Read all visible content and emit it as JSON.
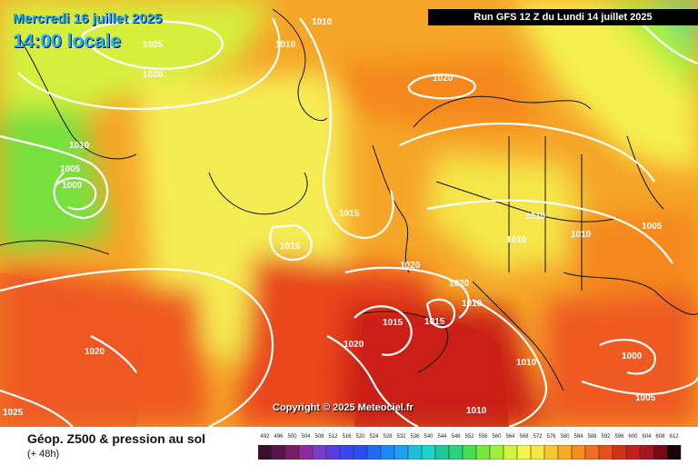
{
  "header": {
    "date_text": "Mercredi 16 juillet 2025",
    "time_text": "14:00 locale",
    "run_text": "Run GFS 12 Z du Lundi 14 juillet 2025"
  },
  "map": {
    "copyright_text": "Copyright © 2025 Meteociel.fr",
    "isobars": [
      {
        "label": "1010"
      },
      {
        "label": "1010"
      },
      {
        "label": "1025"
      },
      {
        "label": "1020"
      },
      {
        "label": "1020"
      },
      {
        "label": "1010"
      },
      {
        "label": "1005"
      },
      {
        "label": "1000"
      },
      {
        "label": "1015"
      },
      {
        "label": "1010"
      },
      {
        "label": "1010"
      },
      {
        "label": "1010"
      },
      {
        "label": "1010"
      },
      {
        "label": "1005"
      },
      {
        "label": "1020"
      },
      {
        "label": "1020"
      },
      {
        "label": "1010"
      },
      {
        "label": "1015"
      },
      {
        "label": "1015"
      },
      {
        "label": "1020"
      },
      {
        "label": "1020"
      },
      {
        "label": "1010"
      },
      {
        "label": "1000"
      },
      {
        "label": "1005"
      },
      {
        "label": "1025"
      },
      {
        "label": "1010"
      }
    ],
    "colors": {
      "land_border": "#111111",
      "isobar": "#ffffff"
    }
  },
  "legend": {
    "title": "Géop. Z500 & pression au sol",
    "subtitle": "(+ 48h)",
    "scale_values": [
      "492",
      "496",
      "500",
      "504",
      "508",
      "512",
      "516",
      "520",
      "524",
      "528",
      "532",
      "536",
      "540",
      "544",
      "548",
      "552",
      "556",
      "560",
      "564",
      "568",
      "572",
      "576",
      "580",
      "584",
      "588",
      "592",
      "596",
      "600",
      "604",
      "608",
      "612"
    ],
    "scale_colors": [
      "#3a0f2e",
      "#5a1548",
      "#7a1c66",
      "#8c2aa0",
      "#7a3cc8",
      "#5a3ce0",
      "#3c46f0",
      "#2850f0",
      "#1e6af0",
      "#1e86f5",
      "#1ea0f5",
      "#1ebedc",
      "#1ed2c8",
      "#1ec896",
      "#2ad278",
      "#46dc50",
      "#78e63c",
      "#a0ee3c",
      "#d2f53c",
      "#f5f550",
      "#f5e646",
      "#f5c832",
      "#f5aa28",
      "#f58c1e",
      "#f06e1e",
      "#e6501e",
      "#d23219",
      "#c31e19",
      "#aa141e",
      "#780a14",
      "#1a0505"
    ]
  }
}
